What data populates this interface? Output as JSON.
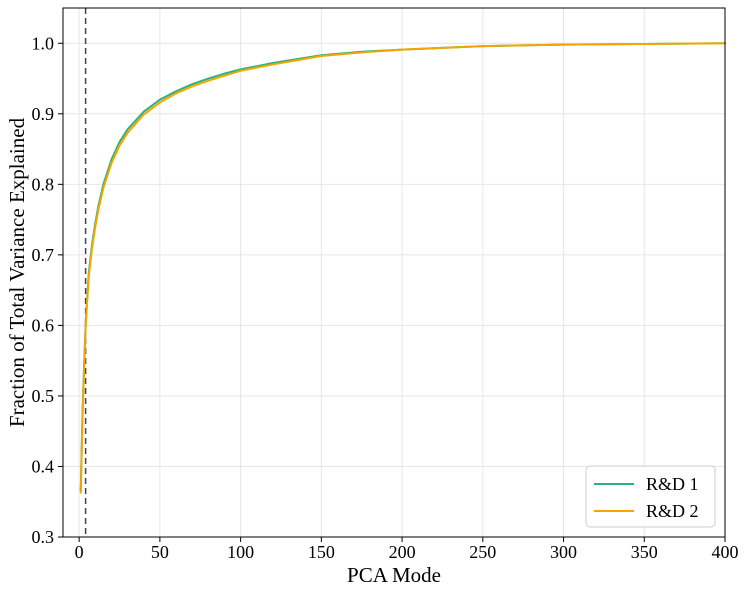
{
  "chart_data": {
    "type": "line",
    "title": "",
    "xlabel": "PCA Mode",
    "ylabel": "Fraction of Total Variance Explained",
    "xlim": [
      -10,
      400
    ],
    "ylim": [
      0.3,
      1.05
    ],
    "x_ticks": [
      0,
      50,
      100,
      150,
      200,
      250,
      300,
      350,
      400
    ],
    "y_ticks": [
      0.3,
      0.4,
      0.5,
      0.6,
      0.7,
      0.8,
      0.9,
      1.0
    ],
    "x_tick_labels": [
      "0",
      "50",
      "100",
      "150",
      "200",
      "250",
      "300",
      "350",
      "400"
    ],
    "y_tick_labels": [
      "0.3",
      "0.4",
      "0.5",
      "0.6",
      "0.7",
      "0.8",
      "0.9",
      "1.0"
    ],
    "grid": true,
    "legend_position": "bottom-right",
    "reference_line": {
      "orientation": "vertical",
      "x": 4,
      "style": "dashed",
      "color": "#444444"
    },
    "series": [
      {
        "name": "R&D 1",
        "color": "#2db37a",
        "x": [
          1,
          2,
          3,
          4,
          5,
          6,
          8,
          10,
          12,
          15,
          20,
          25,
          30,
          40,
          50,
          60,
          70,
          80,
          90,
          100,
          120,
          150,
          175,
          200,
          250,
          300,
          350,
          400
        ],
        "y": [
          0.365,
          0.47,
          0.54,
          0.6,
          0.64,
          0.675,
          0.715,
          0.745,
          0.77,
          0.8,
          0.835,
          0.86,
          0.878,
          0.903,
          0.92,
          0.932,
          0.942,
          0.95,
          0.957,
          0.963,
          0.972,
          0.983,
          0.988,
          0.991,
          0.996,
          0.998,
          0.999,
          1.0
        ]
      },
      {
        "name": "R&D 2",
        "color": "#f5a500",
        "x": [
          1,
          2,
          3,
          4,
          5,
          6,
          8,
          10,
          12,
          15,
          20,
          25,
          30,
          40,
          50,
          60,
          70,
          80,
          90,
          100,
          120,
          150,
          175,
          200,
          250,
          300,
          350,
          400
        ],
        "y": [
          0.363,
          0.465,
          0.535,
          0.595,
          0.635,
          0.67,
          0.71,
          0.74,
          0.765,
          0.795,
          0.83,
          0.855,
          0.873,
          0.899,
          0.916,
          0.929,
          0.939,
          0.947,
          0.954,
          0.961,
          0.97,
          0.982,
          0.987,
          0.991,
          0.996,
          0.998,
          0.999,
          1.0
        ]
      }
    ]
  }
}
